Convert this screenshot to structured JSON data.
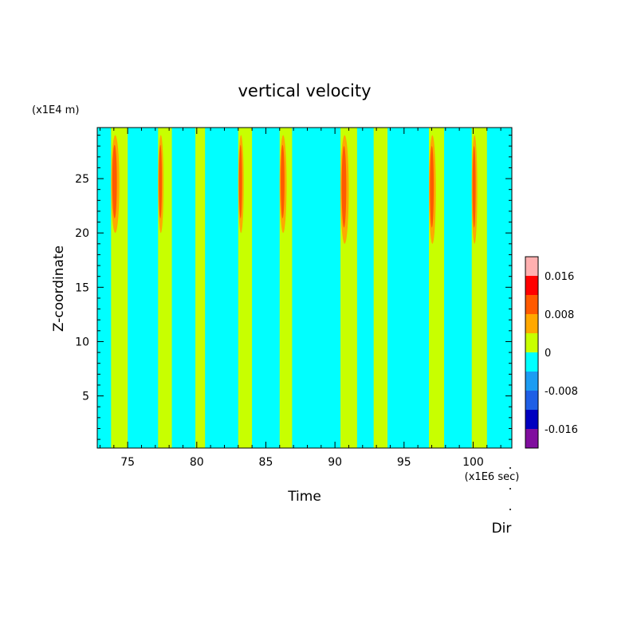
{
  "chart_data": {
    "type": "heatmap",
    "title": "vertical velocity",
    "xlabel": "Time",
    "ylabel": "Z-coordinate",
    "x_scale_label": "(x1E6 sec)",
    "y_scale_label": "(x1E4 m)",
    "footer_label": "Dir",
    "xlim": [
      72.8,
      102.8
    ],
    "ylim": [
      0.2,
      29.7
    ],
    "x_ticks": [
      75,
      80,
      85,
      90,
      95,
      100
    ],
    "y_ticks": [
      5,
      10,
      15,
      20,
      25
    ],
    "colorbar": {
      "levels": [
        {
          "min": -0.02,
          "max": -0.016,
          "color": "#800e9e"
        },
        {
          "min": -0.016,
          "max": -0.012,
          "color": "#0000c0"
        },
        {
          "min": -0.012,
          "max": -0.008,
          "color": "#1f5fe6"
        },
        {
          "min": -0.008,
          "max": -0.004,
          "color": "#1c9cf2"
        },
        {
          "min": -0.004,
          "max": 0.0,
          "color": "#00ffff"
        },
        {
          "min": 0.0,
          "max": 0.004,
          "color": "#c8ff00"
        },
        {
          "min": 0.004,
          "max": 0.008,
          "color": "#ffa800"
        },
        {
          "min": 0.008,
          "max": 0.012,
          "color": "#ff5a00"
        },
        {
          "min": 0.012,
          "max": 0.016,
          "color": "#ff0000"
        },
        {
          "min": 0.016,
          "max": 0.02,
          "color": "#ffb0b0"
        }
      ],
      "tick_labels": [
        "0.016",
        "0.008",
        "0",
        "-0.008",
        "-0.016"
      ],
      "tick_values": [
        0.016,
        0.008,
        0.0,
        -0.008,
        -0.016
      ]
    },
    "background_level": {
      "range": [
        -0.004,
        0.0
      ],
      "color": "#00ffff"
    },
    "updraft_bands": [
      {
        "t_start": 73.8,
        "t_end": 75.0
      },
      {
        "t_start": 77.2,
        "t_end": 78.2
      },
      {
        "t_start": 79.9,
        "t_end": 80.6
      },
      {
        "t_start": 83.0,
        "t_end": 84.0
      },
      {
        "t_start": 86.0,
        "t_end": 86.9
      },
      {
        "t_start": 90.4,
        "t_end": 91.6
      },
      {
        "t_start": 92.8,
        "t_end": 93.8
      },
      {
        "t_start": 96.8,
        "t_end": 97.9
      },
      {
        "t_start": 99.9,
        "t_end": 101.0
      }
    ],
    "velocity_peaks": [
      {
        "t_start": 73.8,
        "t_end": 74.4,
        "z_start": 20.0,
        "z_end": 29.0,
        "level": 0.012
      },
      {
        "t_start": 77.2,
        "t_end": 77.6,
        "z_start": 20.0,
        "z_end": 29.0,
        "level": 0.008
      },
      {
        "t_start": 83.0,
        "t_end": 83.4,
        "z_start": 20.0,
        "z_end": 29.0,
        "level": 0.008
      },
      {
        "t_start": 86.0,
        "t_end": 86.5,
        "z_start": 20.0,
        "z_end": 29.0,
        "level": 0.012
      },
      {
        "t_start": 90.4,
        "t_end": 91.0,
        "z_start": 19.0,
        "z_end": 29.0,
        "level": 0.012
      },
      {
        "t_start": 96.8,
        "t_end": 97.3,
        "z_start": 19.0,
        "z_end": 29.0,
        "level": 0.012
      },
      {
        "t_start": 99.9,
        "t_end": 100.3,
        "z_start": 19.0,
        "z_end": 29.0,
        "level": 0.008
      }
    ]
  }
}
